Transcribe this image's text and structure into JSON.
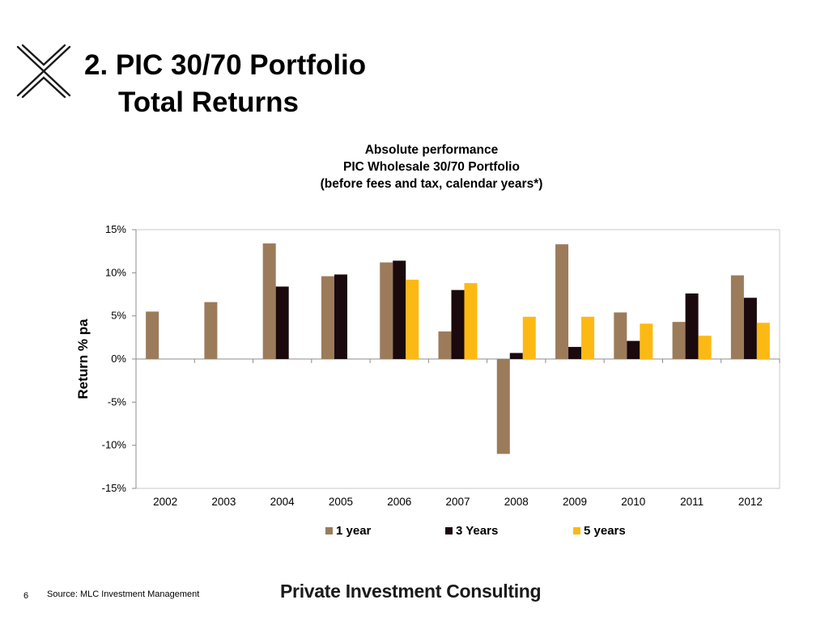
{
  "slide": {
    "title_line1": "2. PIC 30/70 Portfolio",
    "title_line2": "Total Returns",
    "page_number": "6",
    "source": "Source: MLC Investment Management",
    "brand": "Private Investment Consulting"
  },
  "icons": {
    "logo": "x-logo-icon"
  },
  "chart_data": {
    "type": "bar",
    "title": "Absolute performance",
    "subtitle": "PIC Wholesale 30/70 Portfolio",
    "subtitle2": "(before fees and tax, calendar years*)",
    "xlabel": "",
    "ylabel": "Return % pa",
    "ylim": [
      -15,
      15
    ],
    "yticks": [
      15,
      10,
      5,
      0,
      -5,
      -10,
      -15
    ],
    "ytick_labels": [
      "15%",
      "10%",
      "5%",
      "0%",
      "-5%",
      "-10%",
      "-15%"
    ],
    "grid": false,
    "legend_position": "bottom",
    "categories": [
      "2002",
      "2003",
      "2004",
      "2005",
      "2006",
      "2007",
      "2008",
      "2009",
      "2010",
      "2011",
      "2012"
    ],
    "series": [
      {
        "name": "1 year",
        "color": "#9C7B5B",
        "values": [
          5.5,
          6.6,
          13.4,
          9.6,
          11.2,
          3.2,
          -11.0,
          13.3,
          5.4,
          4.3,
          9.7
        ]
      },
      {
        "name": "3 Years",
        "color": "#1A0A0E",
        "values": [
          null,
          null,
          8.4,
          9.8,
          11.4,
          8.0,
          0.7,
          1.4,
          2.1,
          7.6,
          7.1
        ]
      },
      {
        "name": "5 years",
        "color": "#FDB913",
        "values": [
          null,
          null,
          null,
          null,
          9.2,
          8.8,
          4.9,
          4.9,
          4.1,
          2.7,
          4.2
        ]
      }
    ]
  }
}
